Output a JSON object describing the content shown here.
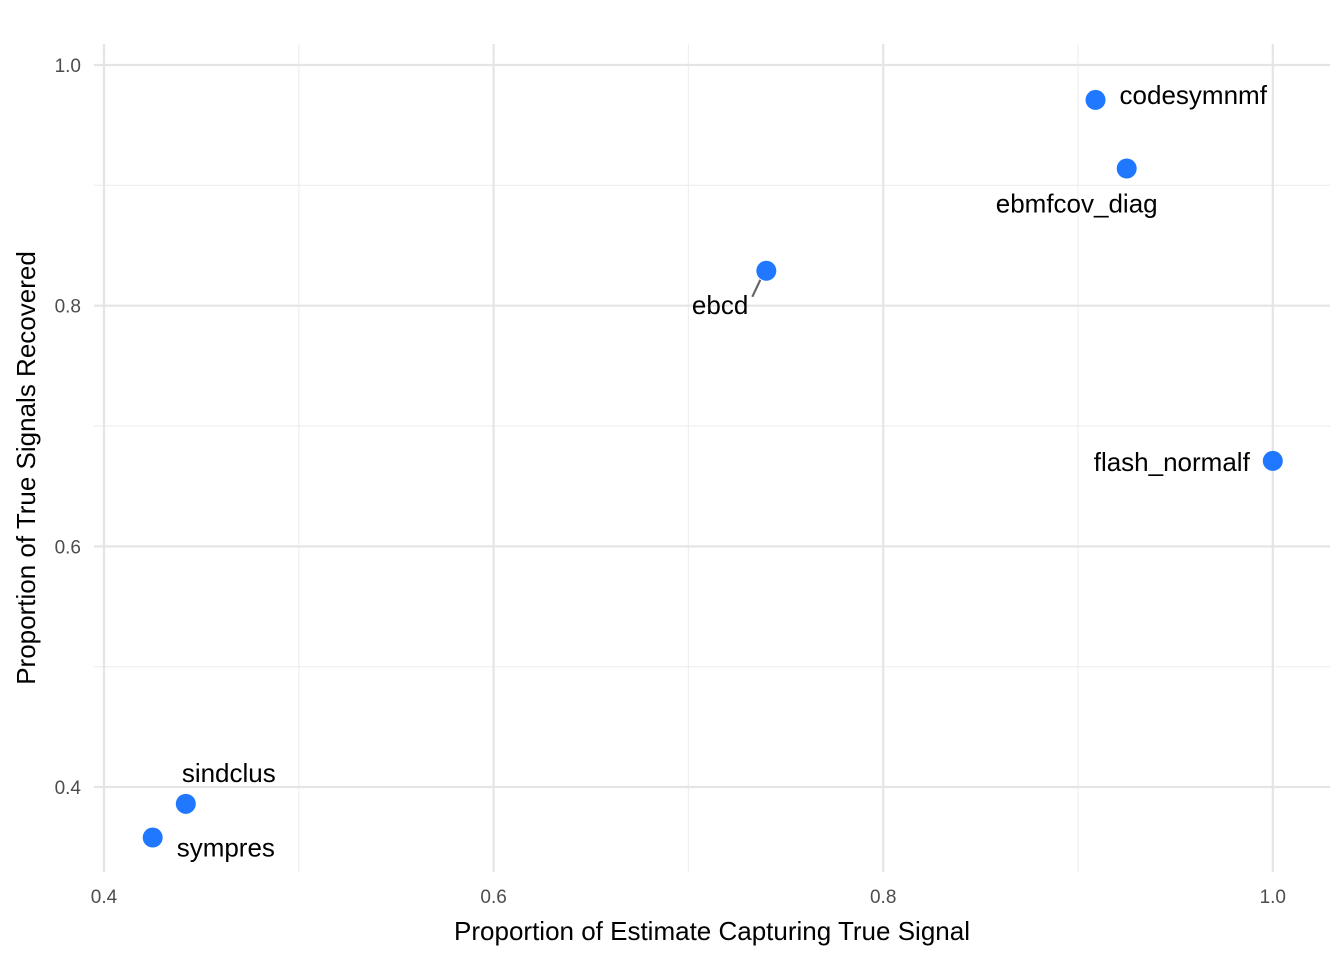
{
  "chart_data": {
    "type": "scatter",
    "title": "",
    "xlabel": "Proportion of Estimate Capturing True Signal",
    "ylabel": "Proportion of True Signals Recovered",
    "xlim": [
      0.4,
      1.0
    ],
    "ylim": [
      0.4,
      1.0
    ],
    "x_ticks": [
      "0.4",
      "0.6",
      "0.8",
      "1.0"
    ],
    "y_ticks": [
      "0.4",
      "0.6",
      "0.8",
      "1.0"
    ],
    "grid": true,
    "legend": "none",
    "point_color": "#1f78ff",
    "points": [
      {
        "label": "codesymnmf",
        "x": 0.909,
        "y": 0.971
      },
      {
        "label": "ebmfcov_diag",
        "x": 0.925,
        "y": 0.914
      },
      {
        "label": "ebcd",
        "x": 0.74,
        "y": 0.829
      },
      {
        "label": "flash_normalf",
        "x": 1.0,
        "y": 0.671
      },
      {
        "label": "sindclus",
        "x": 0.442,
        "y": 0.386
      },
      {
        "label": "sympres",
        "x": 0.425,
        "y": 0.358
      }
    ]
  }
}
